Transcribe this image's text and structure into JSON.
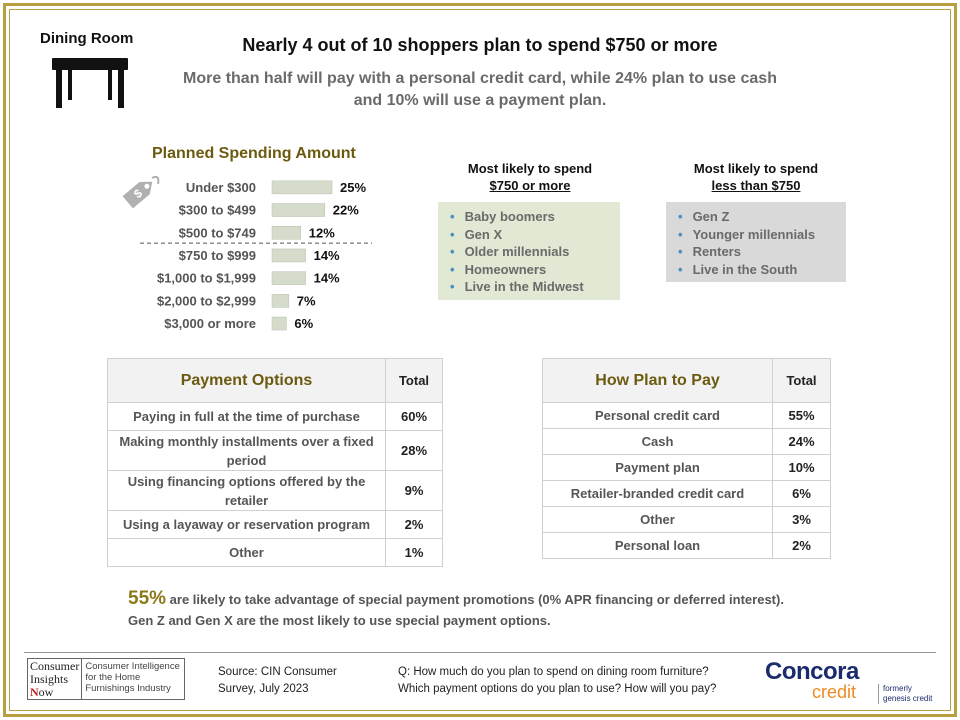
{
  "room_label": "Dining Room",
  "headline": "Nearly 4 out of 10 shoppers plan to spend $750 or more",
  "subhead": "More than half will pay with a personal credit card, while 24% plan to use cash and 10% will use a payment plan.",
  "chart_data": {
    "type": "bar",
    "orientation": "horizontal",
    "title": "Planned Spending Amount",
    "categories": [
      "Under $300",
      "$300 to $499",
      "$500 to $749",
      "$750 to $999",
      "$1,000 to $1,999",
      "$2,000 to $2,999",
      "$3,000 or more"
    ],
    "values": [
      25,
      22,
      12,
      14,
      14,
      7,
      6
    ],
    "value_labels": [
      "25%",
      "22%",
      "12%",
      "14%",
      "14%",
      "7%",
      "6%"
    ],
    "unit": "%",
    "bar_color": "#d6dccb",
    "divider_after_index": 2,
    "grid": false
  },
  "likely_750_more": {
    "heading_line1": "Most likely to spend",
    "heading_line2": "$750 or more",
    "items": [
      "Baby boomers",
      "Gen X",
      "Older millennials",
      "Homeowners",
      "Live in the Midwest"
    ]
  },
  "likely_less_750": {
    "heading_line1": "Most likely to spend",
    "heading_line2": "less than $750",
    "items": [
      "Gen Z",
      "Younger millennials",
      "Renters",
      "Live in the South"
    ]
  },
  "payment_options": {
    "title": "Payment Options",
    "total_label": "Total",
    "rows": [
      {
        "label": "Paying in full at the time of purchase",
        "value": "60%"
      },
      {
        "label": "Making monthly installments over a fixed period",
        "value": "28%"
      },
      {
        "label": "Using financing options offered by the retailer",
        "value": "9%"
      },
      {
        "label": "Using a layaway or reservation program",
        "value": "2%"
      },
      {
        "label": "Other",
        "value": "1%"
      }
    ]
  },
  "plan_to_pay": {
    "title": "How Plan to Pay",
    "total_label": "Total",
    "rows": [
      {
        "label": "Personal credit card",
        "value": "55%"
      },
      {
        "label": "Cash",
        "value": "24%"
      },
      {
        "label": "Payment plan",
        "value": "10%"
      },
      {
        "label": "Retailer-branded credit card",
        "value": "6%"
      },
      {
        "label": "Other",
        "value": "3%"
      },
      {
        "label": "Personal loan",
        "value": "2%"
      }
    ]
  },
  "promo": {
    "big": "55%",
    "line1": "are likely to take advantage of special payment promotions (0% APR financing or deferred interest).",
    "line2": "Gen Z and Gen X are the most likely to use special payment options."
  },
  "footer": {
    "cin_l1": "Consumer",
    "cin_l2": "Insights",
    "cin_l3_n": "N",
    "cin_l3_rest": "ow",
    "cin_tag": "Consumer Intelligence for the Home Furnishings Industry",
    "source_l1": "Source:  CIN Consumer",
    "source_l2": "Survey, July 2023",
    "question_l1": "Q: How much do you plan to spend on dining room furniture?",
    "question_l2": "Which payment options do you plan to use? How will you pay?",
    "brand_word": "Concora",
    "brand_credit": "credit",
    "formerly_l1": "formerly",
    "formerly_l2": "genesis credit"
  },
  "colors": {
    "frame": "#b8a040",
    "title_gold": "#6b5a10",
    "bullet_blue": "#4a8fbf",
    "concora_navy": "#1a2b6e",
    "concora_orange": "#f08a24"
  }
}
